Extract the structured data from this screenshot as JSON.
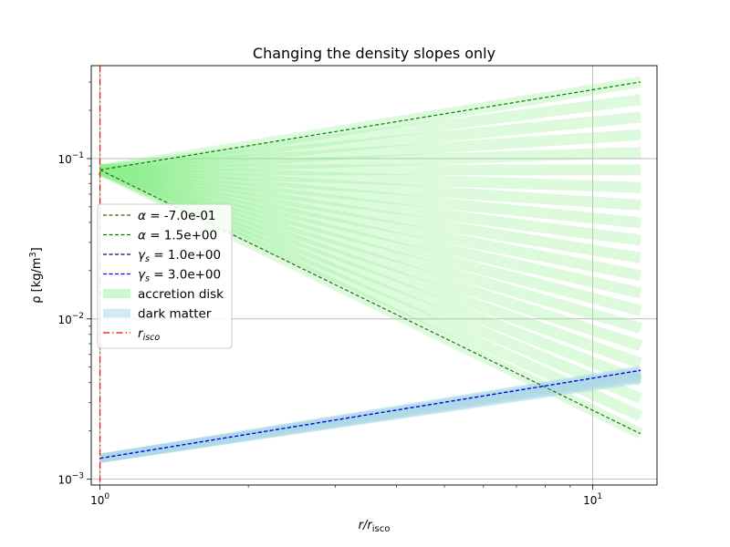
{
  "chart_data": {
    "type": "line",
    "title": "Changing the density slopes only",
    "xlabel": {
      "base": "r/r",
      "sub": "isco"
    },
    "ylabel": {
      "prefix": "ρ [kg/m",
      "sup": "3",
      "suffix": "]"
    },
    "xscale": "log",
    "yscale": "log",
    "xlim": [
      0.96,
      13.5
    ],
    "ylim": [
      0.00092,
      0.38
    ],
    "grid": true,
    "x_ticks": [
      {
        "value": 1,
        "base": "10",
        "exp": "0"
      },
      {
        "value": 10,
        "base": "10",
        "exp": "1"
      }
    ],
    "y_ticks": [
      {
        "value": 0.001,
        "base": "10",
        "exp": "−3"
      },
      {
        "value": 0.01,
        "base": "10",
        "exp": "−2"
      },
      {
        "value": 0.1,
        "base": "10",
        "exp": "−1"
      }
    ],
    "x_range": [
      1,
      12.5
    ],
    "accretion_disk": {
      "label": "accretion disk",
      "color": "#90ee90",
      "rho0": 0.085,
      "slopes": [
        0.5,
        0.4,
        0.3,
        0.2,
        0.1,
        0.0,
        -0.1,
        -0.2,
        -0.3,
        -0.4,
        -0.5,
        -0.6,
        -0.7,
        -0.8,
        -0.9,
        -1.0,
        -1.1,
        -1.2,
        -1.3,
        -1.4,
        -1.5
      ]
    },
    "dark_matter": {
      "label": "dark matter",
      "color": "#add8e6",
      "rho0": 0.00135,
      "slopes": [
        0.5,
        0.49,
        0.48,
        0.47,
        0.46,
        0.45
      ]
    },
    "series": [
      {
        "name": "α = -7.0e-01",
        "base": "α",
        "sub": "",
        "value": "-7.0e-01",
        "color": "#2e6b1e",
        "style": "dashed",
        "rho0": 0.085,
        "slope": -1.5
      },
      {
        "name": "α = 1.5e+00",
        "base": "α",
        "sub": "",
        "value": "1.5e+00",
        "color": "#008000",
        "style": "dashed",
        "rho0": 0.085,
        "slope": 0.5
      },
      {
        "name": "γs = 1.0e+00",
        "base": "γ",
        "sub": "s",
        "value": "1.0e+00",
        "color": "#00008b",
        "style": "dashed",
        "rho0": 0.00135,
        "slope": 0.5
      },
      {
        "name": "γs = 3.0e+00",
        "base": "γ",
        "sub": "s",
        "value": "3.0e+00",
        "color": "#0000ff",
        "style": "dashed",
        "rho0": 0.00135,
        "slope": 0.5
      }
    ],
    "vline": {
      "x": 1,
      "base": "r",
      "sub": "isco",
      "color": "#ff0000",
      "style": "dashdot"
    },
    "legend_position": "center-left"
  }
}
